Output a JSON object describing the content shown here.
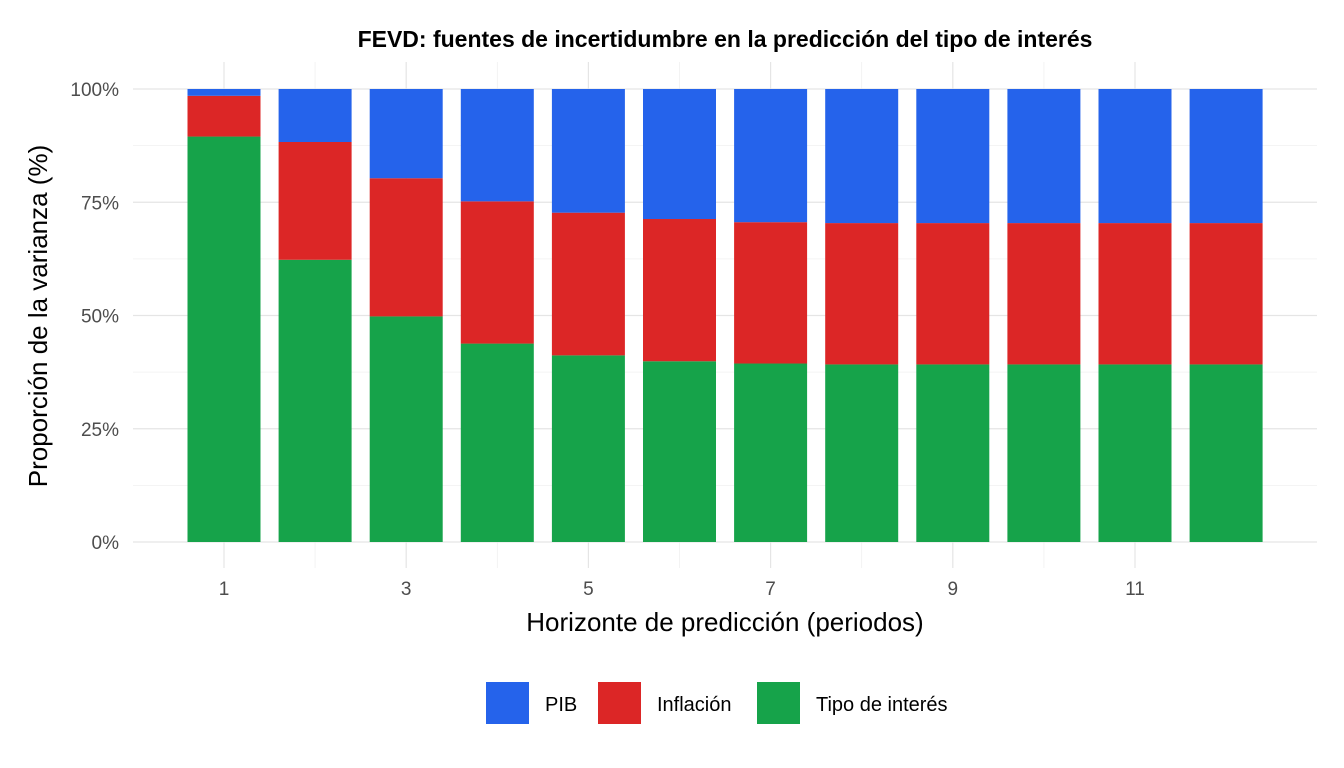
{
  "chart_data": {
    "type": "bar",
    "stacked": true,
    "title": "FEVD: fuentes de incertidumbre en la predicción del tipo de interés",
    "xlabel": "Horizonte de predicción (periodos)",
    "ylabel": "Proporción de la varianza (%)",
    "categories": [
      1,
      2,
      3,
      4,
      5,
      6,
      7,
      8,
      9,
      10,
      11,
      12
    ],
    "x_tick_labels": [
      "1",
      "3",
      "5",
      "7",
      "9",
      "11"
    ],
    "x_tick_values": [
      1,
      3,
      5,
      7,
      9,
      11
    ],
    "y_tick_labels": [
      "0%",
      "25%",
      "50%",
      "75%",
      "100%"
    ],
    "y_tick_values": [
      0,
      0.25,
      0.5,
      0.75,
      1.0
    ],
    "ylim": [
      0,
      1
    ],
    "grid": true,
    "legend_position": "bottom",
    "series": [
      {
        "name": "Tipo de interés",
        "color": "#16A34A",
        "values": [
          0.895,
          0.623,
          0.498,
          0.438,
          0.412,
          0.399,
          0.394,
          0.392,
          0.392,
          0.392,
          0.392,
          0.392
        ]
      },
      {
        "name": "Inflación",
        "color": "#DC2626",
        "values": [
          0.09,
          0.26,
          0.305,
          0.314,
          0.315,
          0.314,
          0.312,
          0.312,
          0.312,
          0.312,
          0.312,
          0.312
        ]
      },
      {
        "name": "PIB",
        "color": "#2563EB",
        "values": [
          0.015,
          0.117,
          0.197,
          0.248,
          0.273,
          0.287,
          0.294,
          0.296,
          0.296,
          0.296,
          0.296,
          0.296
        ]
      }
    ],
    "legend_order": [
      "PIB",
      "Inflación",
      "Tipo de interés"
    ]
  }
}
